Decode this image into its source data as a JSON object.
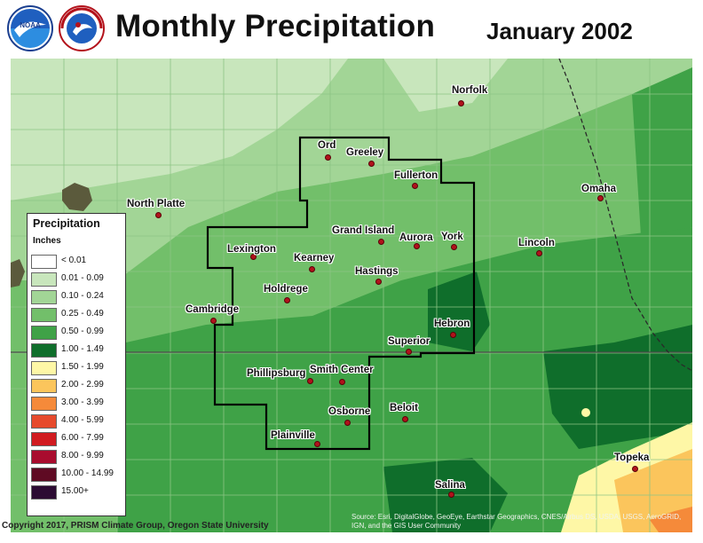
{
  "header": {
    "title": "Monthly Precipitation",
    "period": "January 2002",
    "logos": [
      "noaa-logo",
      "national-weather-service-logo"
    ]
  },
  "legend": {
    "title": "Precipitation",
    "units": "Inches",
    "classes": [
      {
        "label": "< 0.01",
        "color": "#ffffff"
      },
      {
        "label": "0.01 - 0.09",
        "color": "#c8e6bc"
      },
      {
        "label": "0.10 - 0.24",
        "color": "#a2d596"
      },
      {
        "label": "0.25 - 0.49",
        "color": "#72bf6a"
      },
      {
        "label": "0.50 - 0.99",
        "color": "#3fa247"
      },
      {
        "label": "1.00 - 1.49",
        "color": "#0f6e2b"
      },
      {
        "label": "1.50 - 1.99",
        "color": "#fef7a6"
      },
      {
        "label": "2.00 - 2.99",
        "color": "#fbc55c"
      },
      {
        "label": "3.00 - 3.99",
        "color": "#f58a3a"
      },
      {
        "label": "4.00 - 5.99",
        "color": "#e64a2c"
      },
      {
        "label": "6.00 - 7.99",
        "color": "#d11b20"
      },
      {
        "label": "8.00 - 9.99",
        "color": "#a90c2e"
      },
      {
        "label": "10.00 - 14.99",
        "color": "#5f0a23"
      },
      {
        "label": "15.00+",
        "color": "#2c0b33"
      }
    ]
  },
  "cities": [
    {
      "name": "Norfolk"
    },
    {
      "name": "Ord"
    },
    {
      "name": "Greeley"
    },
    {
      "name": "Fullerton"
    },
    {
      "name": "Omaha"
    },
    {
      "name": "North Platte"
    },
    {
      "name": "Grand Island"
    },
    {
      "name": "Aurora"
    },
    {
      "name": "York"
    },
    {
      "name": "Lincoln"
    },
    {
      "name": "Lexington"
    },
    {
      "name": "Kearney"
    },
    {
      "name": "Hastings"
    },
    {
      "name": "Holdrege"
    },
    {
      "name": "Cambridge"
    },
    {
      "name": "Hebron"
    },
    {
      "name": "Superior"
    },
    {
      "name": "Phillipsburg"
    },
    {
      "name": "Smith Center"
    },
    {
      "name": "Osborne"
    },
    {
      "name": "Beloit"
    },
    {
      "name": "Plainville"
    },
    {
      "name": "Topeka"
    },
    {
      "name": "Salina"
    }
  ],
  "footer": {
    "copyright": "Copyright 2017, PRISM Climate Group, Oregon State University",
    "credits": "Source: Esri, DigitalGlobe, GeoEye, Earthstar Geographics, CNES/Airbus DS, USDA, USGS, AeroGRID, IGN, and the GIS User Community"
  }
}
